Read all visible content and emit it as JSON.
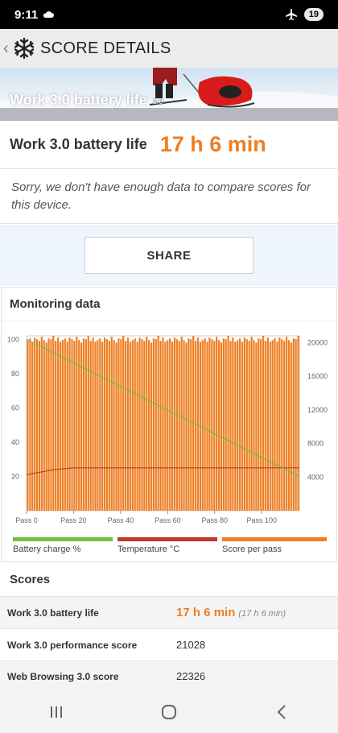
{
  "status_bar": {
    "time": "9:11",
    "battery": "19"
  },
  "app_bar": {
    "back_glyph": "‹",
    "title": "SCORE DETAILS"
  },
  "hero": {
    "title": "Work 3.0 battery life",
    "version": "3.0"
  },
  "result": {
    "label": "Work 3.0 battery life",
    "value": "17 h 6 min"
  },
  "notice": "Sorry, we don't have enough data to compare scores for this device.",
  "share_label": "SHARE",
  "monitoring": {
    "title": "Monitoring data"
  },
  "colors": {
    "accent": "#ee7e22",
    "battery": "#72bf44",
    "temperature": "#c0392b",
    "score": "#ee7e22"
  },
  "chart_data": {
    "type": "bar",
    "x_ticks": [
      "Pass 0",
      "Pass 20",
      "Pass 40",
      "Pass 60",
      "Pass 80",
      "Pass 100"
    ],
    "x_tick_values": [
      0,
      20,
      40,
      60,
      80,
      100
    ],
    "xlim": [
      0,
      116
    ],
    "y_left_ticks": [
      "100",
      "80",
      "60",
      "40",
      "20"
    ],
    "y_left_values": [
      100,
      80,
      60,
      40,
      20
    ],
    "y_left_lim": [
      0,
      102
    ],
    "y_right_ticks": [
      "20000",
      "16000",
      "12000",
      "8000",
      "4000"
    ],
    "y_right_values": [
      20000,
      16000,
      12000,
      8000,
      4000
    ],
    "y_right_lim": [
      0,
      20800
    ],
    "series": [
      {
        "name": "Battery charge %",
        "type": "line",
        "axis": "left",
        "x": [
          0,
          116
        ],
        "values": [
          100,
          20
        ]
      },
      {
        "name": "Temperature °C",
        "type": "line",
        "axis": "left",
        "x": [
          0,
          4,
          8,
          12,
          20,
          116
        ],
        "values": [
          21,
          22,
          23,
          24,
          25,
          25
        ]
      },
      {
        "name": "Score per pass",
        "type": "bar",
        "axis": "right",
        "count": 117,
        "pattern": [
          20300,
          20500,
          20100,
          20600,
          20400,
          20200,
          20700,
          20300,
          20000,
          20500,
          20400,
          20800,
          20200,
          20600,
          20100
        ]
      }
    ],
    "legend": [
      "Battery charge %",
      "Temperature °C",
      "Score per pass"
    ],
    "legend_position": "bottom"
  },
  "scores": {
    "title": "Scores",
    "rows": [
      {
        "label": "Work 3.0 battery life",
        "value": "17 h 6 min",
        "sub": "(17 h 6 min)"
      },
      {
        "label": "Work 3.0 performance score",
        "value": "21028"
      },
      {
        "label": "Web Browsing 3.0 score",
        "value": "22326"
      }
    ]
  }
}
